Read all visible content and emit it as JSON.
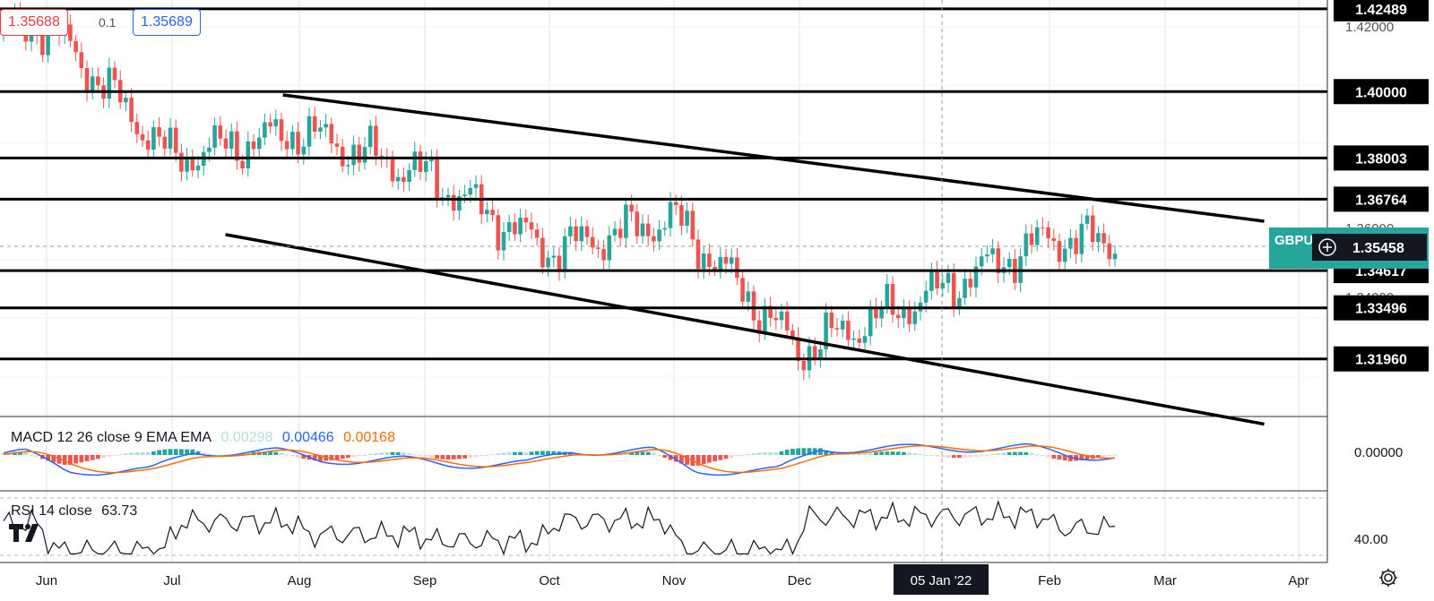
{
  "header": {
    "sell_price": "1.35688",
    "spread": "0.1",
    "buy_price": "1.35689"
  },
  "symbol_label": "GBPU",
  "crosshair": {
    "price": "1.35458",
    "date": "05 Jan '22"
  },
  "price_axis_ticks": [
    "1.42000",
    "1.36000",
    "1.34000"
  ],
  "level_labels": [
    "1.42489",
    "1.40000",
    "1.38003",
    "1.36764",
    "1.34617",
    "1.33496",
    "1.31960"
  ],
  "macd": {
    "title": "MACD 12 26 close 9 EMA EMA",
    "hist_value": "0.00298",
    "macd_value": "0.00466",
    "signal_value": "0.00168",
    "axis_tick": "0.00000"
  },
  "rsi": {
    "title": "RSI 14 close",
    "value": "63.73",
    "axis_tick": "40.00"
  },
  "time_axis": [
    "Jun",
    "Jul",
    "Aug",
    "Sep",
    "Oct",
    "Nov",
    "Dec",
    "Feb",
    "Mar",
    "Apr"
  ],
  "colors": {
    "up": "#26a69a",
    "down": "#ef5350",
    "macd_line": "#2962ff",
    "signal_line": "#ff6d00",
    "hist_up_strong": "#26a69a",
    "hist_up_weak": "#b2dfdb",
    "hist_down_strong": "#ef5350",
    "hist_down_weak": "#ffcdd2",
    "symbol_tag": "#26a69a"
  },
  "icons": {
    "tradingview_logo": "tradingview-logo-icon",
    "settings": "gear-icon",
    "crosshair_add": "plus-circle-icon"
  },
  "chart_data": [
    {
      "type": "candlestick",
      "title": "",
      "x": [
        "2021-06",
        "2021-07",
        "2021-08",
        "2021-09",
        "2021-10",
        "2021-11",
        "2021-12",
        "2022-01",
        "2022-02"
      ],
      "close": [
        1.42,
        1.38,
        1.388,
        1.375,
        1.352,
        1.362,
        1.322,
        1.338,
        1.356
      ],
      "horizontal_levels": [
        1.42489,
        1.4,
        1.38003,
        1.36764,
        1.34617,
        1.33496,
        1.3196
      ],
      "channel": {
        "upper": [
          {
            "x": "2021-07-28",
            "y": 1.399
          },
          {
            "x": "2022-03-24",
            "y": 1.361
          }
        ],
        "lower": [
          {
            "x": "2021-07-14",
            "y": 1.357
          },
          {
            "x": "2022-03-24",
            "y": 1.3
          }
        ]
      },
      "last_price": 1.35458,
      "ylim": [
        1.3,
        1.428
      ]
    },
    {
      "type": "line",
      "title": "MACD 12 26 close 9 EMA EMA",
      "series": [
        {
          "name": "MACD",
          "last": 0.00466
        },
        {
          "name": "Signal",
          "last": 0.00168
        },
        {
          "name": "Histogram",
          "last": 0.00298
        }
      ]
    },
    {
      "type": "line",
      "title": "RSI 14 close",
      "series": [
        {
          "name": "RSI",
          "last": 63.73
        }
      ],
      "ylim": [
        30,
        70
      ]
    }
  ]
}
